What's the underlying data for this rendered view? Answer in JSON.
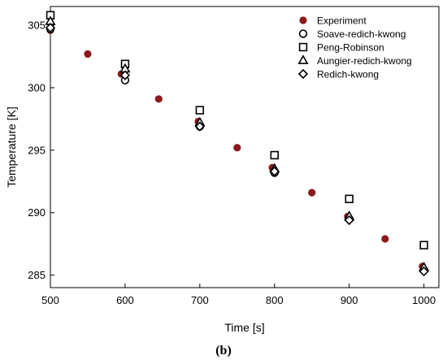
{
  "caption": "(b)",
  "chart_data": {
    "type": "scatter",
    "title": "",
    "xlabel": "Time [s]",
    "ylabel": "Temperature [K]",
    "xlim": [
      500,
      1020
    ],
    "ylim": [
      284,
      306.5
    ],
    "x_ticks": [
      500,
      600,
      700,
      800,
      900,
      1000
    ],
    "y_ticks": [
      285,
      290,
      295,
      300,
      305
    ],
    "grid": false,
    "legend_position": "top-right",
    "series": [
      {
        "name": "Experiment",
        "marker": "filled-circle",
        "color": "#8b1a1a",
        "points": [
          [
            500,
            304.6
          ],
          [
            550,
            302.7
          ],
          [
            595,
            301.1
          ],
          [
            645,
            299.1
          ],
          [
            698,
            297.3
          ],
          [
            750,
            295.2
          ],
          [
            797,
            293.6
          ],
          [
            850,
            291.6
          ],
          [
            898,
            289.7
          ],
          [
            948,
            287.9
          ],
          [
            998,
            285.7
          ]
        ]
      },
      {
        "name": "Soave-redich-kwong",
        "marker": "open-circle",
        "color": "#000000",
        "points": [
          [
            500,
            304.7
          ],
          [
            600,
            300.6
          ],
          [
            700,
            296.9
          ],
          [
            800,
            293.2
          ],
          [
            900,
            289.5
          ],
          [
            1000,
            285.4
          ]
        ]
      },
      {
        "name": "Peng-Robinson",
        "marker": "open-square",
        "color": "#000000",
        "points": [
          [
            500,
            305.8
          ],
          [
            600,
            301.9
          ],
          [
            700,
            298.2
          ],
          [
            800,
            294.6
          ],
          [
            900,
            291.1
          ],
          [
            1000,
            287.4
          ]
        ]
      },
      {
        "name": "Aungier-redich-kwong",
        "marker": "open-triangle",
        "color": "#000000",
        "points": [
          [
            500,
            305.3
          ],
          [
            600,
            301.5
          ],
          [
            700,
            297.2
          ],
          [
            800,
            293.5
          ],
          [
            900,
            289.7
          ],
          [
            1000,
            285.6
          ]
        ]
      },
      {
        "name": "Redich-kwong",
        "marker": "open-diamond",
        "color": "#000000",
        "points": [
          [
            500,
            304.8
          ],
          [
            600,
            301.0
          ],
          [
            700,
            296.9
          ],
          [
            800,
            293.3
          ],
          [
            900,
            289.4
          ],
          [
            1000,
            285.3
          ]
        ]
      }
    ]
  }
}
